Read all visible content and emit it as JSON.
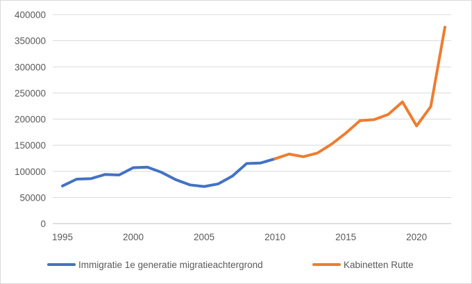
{
  "chart_data": {
    "type": "line",
    "title": "",
    "xlabel": "",
    "ylabel": "",
    "xlim": [
      1995,
      2022
    ],
    "ylim": [
      0,
      400000
    ],
    "y_ticks": [
      0,
      50000,
      100000,
      150000,
      200000,
      250000,
      300000,
      350000,
      400000
    ],
    "y_tick_labels": [
      "0",
      "50000",
      "100000",
      "150000",
      "200000",
      "250000",
      "300000",
      "350000",
      "400000"
    ],
    "x_ticks": [
      1995,
      2000,
      2005,
      2010,
      2015,
      2020
    ],
    "x_tick_labels": [
      "1995",
      "2000",
      "2005",
      "2010",
      "2015",
      "2020"
    ],
    "grid": "horizontal",
    "legend_position": "bottom",
    "series": [
      {
        "name": "Immigratie 1e generatie migratieachtergrond",
        "color": "#4472c4",
        "x": [
          1995,
          1996,
          1997,
          1998,
          1999,
          2000,
          2001,
          2002,
          2003,
          2004,
          2005,
          2006,
          2007,
          2008,
          2009,
          2010
        ],
        "values": [
          72000,
          85000,
          86000,
          94000,
          93000,
          107000,
          108000,
          98000,
          84000,
          74000,
          71000,
          76000,
          91000,
          115000,
          116000,
          124000
        ]
      },
      {
        "name": "Kabinetten Rutte",
        "color": "#ed7d31",
        "x": [
          2010,
          2011,
          2012,
          2013,
          2014,
          2015,
          2016,
          2017,
          2018,
          2019,
          2020,
          2021,
          2022
        ],
        "values": [
          124000,
          133000,
          128000,
          135000,
          152000,
          173000,
          197000,
          199000,
          209000,
          233000,
          187000,
          224000,
          376000
        ]
      }
    ]
  }
}
